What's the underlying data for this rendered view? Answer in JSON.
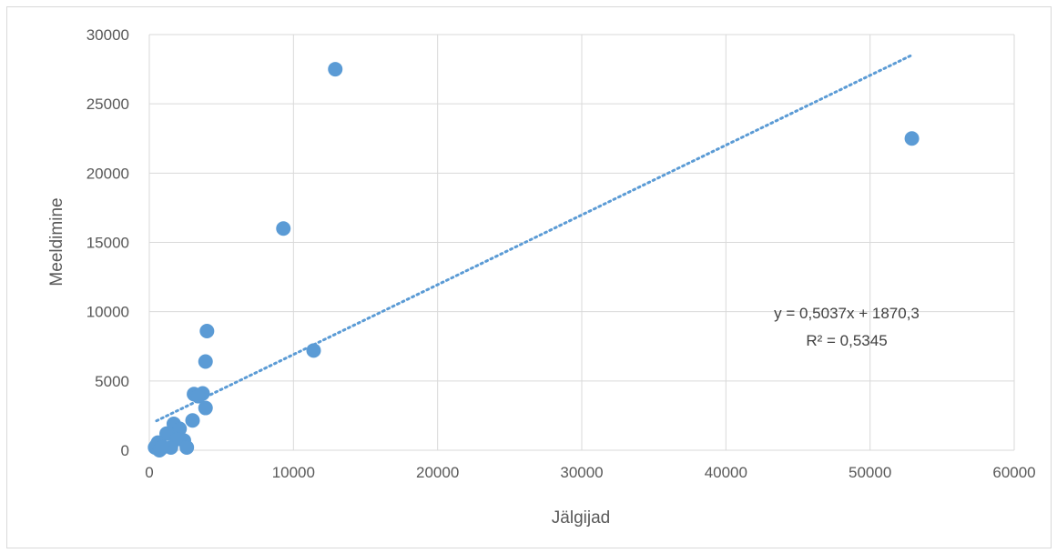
{
  "chart_data": {
    "type": "scatter",
    "title": "",
    "xlabel": "Jälgijad",
    "ylabel": "Meeldimine",
    "xlim": [
      0,
      60000
    ],
    "ylim": [
      0,
      30000
    ],
    "x_ticks": [
      "0",
      "10000",
      "20000",
      "30000",
      "40000",
      "50000",
      "60000"
    ],
    "y_ticks": [
      "0",
      "5000",
      "10000",
      "15000",
      "20000",
      "25000",
      "30000"
    ],
    "grid": true,
    "legend": "none",
    "series": [
      {
        "color": "#5b9bd5",
        "points": [
          [
            12900,
            27500
          ],
          [
            52900,
            22500
          ],
          [
            9300,
            16000
          ],
          [
            4000,
            8600
          ],
          [
            3900,
            6400
          ],
          [
            11400,
            7200
          ],
          [
            3100,
            4050
          ],
          [
            3700,
            4100
          ],
          [
            3400,
            3900
          ],
          [
            3900,
            3050
          ],
          [
            3000,
            2150
          ],
          [
            1700,
            1900
          ],
          [
            2100,
            1550
          ],
          [
            1200,
            1200
          ],
          [
            2400,
            700
          ],
          [
            1900,
            800
          ],
          [
            600,
            550
          ],
          [
            400,
            200
          ],
          [
            800,
            100
          ],
          [
            1500,
            200
          ],
          [
            2600,
            200
          ],
          [
            500,
            350
          ],
          [
            700,
            0
          ],
          [
            900,
            250
          ]
        ]
      }
    ],
    "trendline": {
      "type": "linear",
      "color": "#5b9bd5",
      "slope": 0.5037,
      "intercept": 1870.3,
      "x_range": [
        500,
        52900
      ],
      "equation": "y = 0,5037x + 1870,3",
      "r_squared": "R² = 0,5345"
    }
  }
}
